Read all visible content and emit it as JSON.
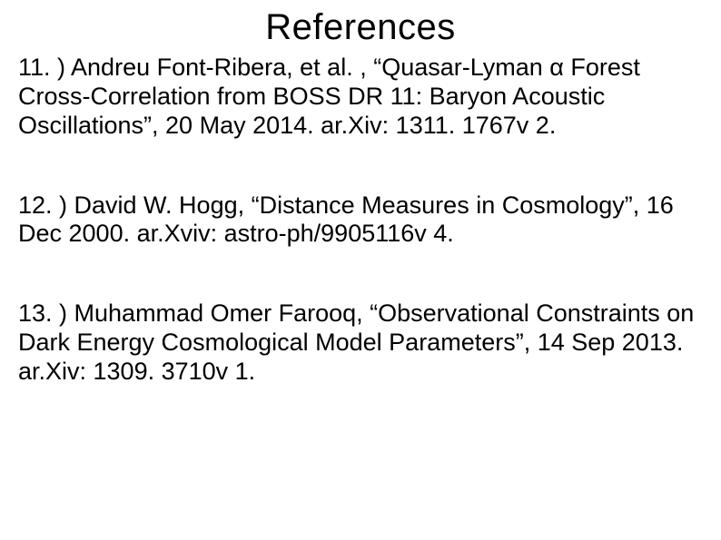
{
  "title": "References",
  "references": [
    {
      "text": "11. ) Andreu Font-Ribera, et al. , “Quasar-Lyman α Forest Cross-Correlation from BOSS DR 11: Baryon Acoustic Oscillations”, 20 May 2014. ar.Xiv: 1311. 1767v 2."
    },
    {
      "text": "12. ) David W. Hogg, “Distance Measures in Cosmology”, 16 Dec 2000. ar.Xviv: astro-ph/9905116v 4."
    },
    {
      "text": "13. ) Muhammad Omer Farooq, “Observational Constraints on Dark Energy Cosmological Model Parameters”, 14 Sep 2013. ar.Xiv: 1309. 3710v 1."
    }
  ],
  "colors": {
    "background": "#ffffff",
    "text": "#000000"
  },
  "typography": {
    "title_fontsize": 40,
    "body_fontsize": 27,
    "font_family": "Arial"
  }
}
